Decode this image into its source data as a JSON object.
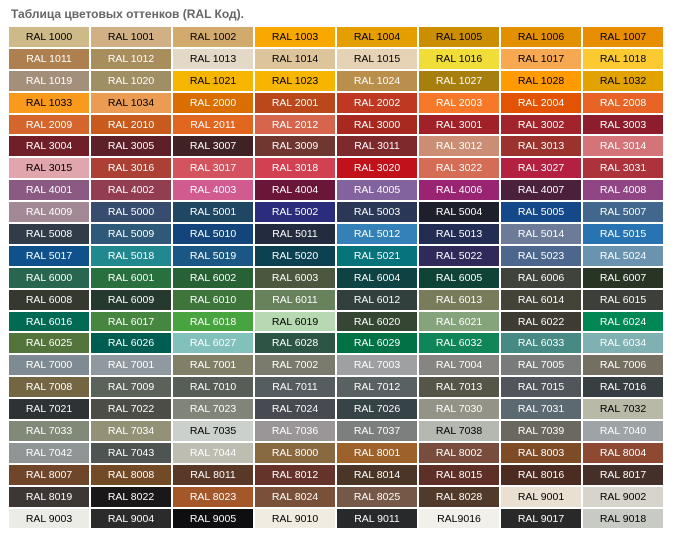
{
  "title": "Таблица цветовых оттенков (RAL Код).",
  "swatches": [
    {
      "code": "RAL 1000",
      "bg": "#CDBA88",
      "fg": "#000000"
    },
    {
      "code": "RAL 1001",
      "bg": "#D0B084",
      "fg": "#000000"
    },
    {
      "code": "RAL 1002",
      "bg": "#D2AA6D",
      "fg": "#000000"
    },
    {
      "code": "RAL 1003",
      "bg": "#F9A800",
      "fg": "#000000"
    },
    {
      "code": "RAL 1004",
      "bg": "#E49E00",
      "fg": "#000000"
    },
    {
      "code": "RAL 1005",
      "bg": "#CB8E00",
      "fg": "#000000"
    },
    {
      "code": "RAL 1006",
      "bg": "#E29000",
      "fg": "#000000"
    },
    {
      "code": "RAL 1007",
      "bg": "#E88C00",
      "fg": "#000000"
    },
    {
      "code": "RAL 1011",
      "bg": "#AF804F",
      "fg": "#ffffff"
    },
    {
      "code": "RAL 1012",
      "bg": "#A88E5C",
      "fg": "#ffffff"
    },
    {
      "code": "RAL 1013",
      "bg": "#E3D9C6",
      "fg": "#000000"
    },
    {
      "code": "RAL 1014",
      "bg": "#DDC49A",
      "fg": "#000000"
    },
    {
      "code": "RAL 1015",
      "bg": "#E6D2B5",
      "fg": "#000000"
    },
    {
      "code": "RAL 1016",
      "bg": "#F1DD38",
      "fg": "#000000"
    },
    {
      "code": "RAL 1017",
      "bg": "#F6A950",
      "fg": "#000000"
    },
    {
      "code": "RAL 1018",
      "bg": "#FACA30",
      "fg": "#000000"
    },
    {
      "code": "RAL 1019",
      "bg": "#A48F7A",
      "fg": "#ffffff"
    },
    {
      "code": "RAL 1020",
      "bg": "#A08F65",
      "fg": "#ffffff"
    },
    {
      "code": "RAL 1021",
      "bg": "#F6B600",
      "fg": "#000000"
    },
    {
      "code": "RAL 1023",
      "bg": "#F7B500",
      "fg": "#000000"
    },
    {
      "code": "RAL 1024",
      "bg": "#BA8F4C",
      "fg": "#ffffff"
    },
    {
      "code": "RAL 1027",
      "bg": "#A77F0E",
      "fg": "#ffffff"
    },
    {
      "code": "RAL 1028",
      "bg": "#FF9B00",
      "fg": "#000000"
    },
    {
      "code": "RAL 1032",
      "bg": "#E2A300",
      "fg": "#000000"
    },
    {
      "code": "RAL 1033",
      "bg": "#F99A1C",
      "fg": "#000000"
    },
    {
      "code": "RAL 1034",
      "bg": "#EB9C52",
      "fg": "#000000"
    },
    {
      "code": "RAL 2000",
      "bg": "#DA6E00",
      "fg": "#ffffff"
    },
    {
      "code": "RAL 2001",
      "bg": "#BA481B",
      "fg": "#ffffff"
    },
    {
      "code": "RAL 2002",
      "bg": "#BF3922",
      "fg": "#ffffff"
    },
    {
      "code": "RAL 2003",
      "bg": "#F67828",
      "fg": "#ffffff"
    },
    {
      "code": "RAL 2004",
      "bg": "#E25303",
      "fg": "#ffffff"
    },
    {
      "code": "RAL 2008",
      "bg": "#E86426",
      "fg": "#ffffff"
    },
    {
      "code": "RAL 2009",
      "bg": "#D4652C",
      "fg": "#ffffff"
    },
    {
      "code": "RAL 2010",
      "bg": "#C85A1E",
      "fg": "#ffffff"
    },
    {
      "code": "RAL 2011",
      "bg": "#E16620",
      "fg": "#ffffff"
    },
    {
      "code": "RAL 2012",
      "bg": "#D5654D",
      "fg": "#ffffff"
    },
    {
      "code": "RAL 3000",
      "bg": "#A72920",
      "fg": "#ffffff"
    },
    {
      "code": "RAL 3001",
      "bg": "#A02128",
      "fg": "#ffffff"
    },
    {
      "code": "RAL 3002",
      "bg": "#A1232B",
      "fg": "#ffffff"
    },
    {
      "code": "RAL 3003",
      "bg": "#8D1D2C",
      "fg": "#ffffff"
    },
    {
      "code": "RAL 3004",
      "bg": "#701F29",
      "fg": "#ffffff"
    },
    {
      "code": "RAL 3005",
      "bg": "#5E2028",
      "fg": "#ffffff"
    },
    {
      "code": "RAL 3007",
      "bg": "#402225",
      "fg": "#ffffff"
    },
    {
      "code": "RAL 3009",
      "bg": "#703731",
      "fg": "#ffffff"
    },
    {
      "code": "RAL 3011",
      "bg": "#7E292C",
      "fg": "#ffffff"
    },
    {
      "code": "RAL 3012",
      "bg": "#CB8D73",
      "fg": "#ffffff"
    },
    {
      "code": "RAL 3013",
      "bg": "#9C322E",
      "fg": "#ffffff"
    },
    {
      "code": "RAL 3014",
      "bg": "#D47479",
      "fg": "#ffffff"
    },
    {
      "code": "RAL 3015",
      "bg": "#E1A6AD",
      "fg": "#000000"
    },
    {
      "code": "RAL 3016",
      "bg": "#AC4034",
      "fg": "#ffffff"
    },
    {
      "code": "RAL 3017",
      "bg": "#D3545F",
      "fg": "#ffffff"
    },
    {
      "code": "RAL 3018",
      "bg": "#D14152",
      "fg": "#ffffff"
    },
    {
      "code": "RAL 3020",
      "bg": "#C1121C",
      "fg": "#ffffff"
    },
    {
      "code": "RAL 3022",
      "bg": "#D56D56",
      "fg": "#ffffff"
    },
    {
      "code": "RAL 3027",
      "bg": "#B42041",
      "fg": "#ffffff"
    },
    {
      "code": "RAL 3031",
      "bg": "#AC323B",
      "fg": "#ffffff"
    },
    {
      "code": "RAL 4001",
      "bg": "#8A5A83",
      "fg": "#ffffff"
    },
    {
      "code": "RAL 4002",
      "bg": "#933D50",
      "fg": "#ffffff"
    },
    {
      "code": "RAL 4003",
      "bg": "#D15B8F",
      "fg": "#ffffff"
    },
    {
      "code": "RAL 4004",
      "bg": "#691639",
      "fg": "#ffffff"
    },
    {
      "code": "RAL 4005",
      "bg": "#83639D",
      "fg": "#ffffff"
    },
    {
      "code": "RAL 4006",
      "bg": "#992572",
      "fg": "#ffffff"
    },
    {
      "code": "RAL 4007",
      "bg": "#4A203B",
      "fg": "#ffffff"
    },
    {
      "code": "RAL 4008",
      "bg": "#904684",
      "fg": "#ffffff"
    },
    {
      "code": "RAL 4009",
      "bg": "#A38995",
      "fg": "#ffffff"
    },
    {
      "code": "RAL 5000",
      "bg": "#384C70",
      "fg": "#ffffff"
    },
    {
      "code": "RAL 5001",
      "bg": "#1F4764",
      "fg": "#ffffff"
    },
    {
      "code": "RAL 5002",
      "bg": "#2B2C7C",
      "fg": "#ffffff"
    },
    {
      "code": "RAL 5003",
      "bg": "#2A3756",
      "fg": "#ffffff"
    },
    {
      "code": "RAL 5004",
      "bg": "#1D1F2A",
      "fg": "#ffffff"
    },
    {
      "code": "RAL 5005",
      "bg": "#154889",
      "fg": "#ffffff"
    },
    {
      "code": "RAL 5007",
      "bg": "#41678D",
      "fg": "#ffffff"
    },
    {
      "code": "RAL 5008",
      "bg": "#313C48",
      "fg": "#ffffff"
    },
    {
      "code": "RAL 5009",
      "bg": "#2E5978",
      "fg": "#ffffff"
    },
    {
      "code": "RAL 5010",
      "bg": "#13447C",
      "fg": "#ffffff"
    },
    {
      "code": "RAL 5011",
      "bg": "#232C3F",
      "fg": "#ffffff"
    },
    {
      "code": "RAL 5012",
      "bg": "#3481B8",
      "fg": "#ffffff"
    },
    {
      "code": "RAL 5013",
      "bg": "#232D53",
      "fg": "#ffffff"
    },
    {
      "code": "RAL 5014",
      "bg": "#6C7C98",
      "fg": "#ffffff"
    },
    {
      "code": "RAL 5015",
      "bg": "#2874B2",
      "fg": "#ffffff"
    },
    {
      "code": "RAL 5017",
      "bg": "#0E518D",
      "fg": "#ffffff"
    },
    {
      "code": "RAL 5018",
      "bg": "#21888F",
      "fg": "#ffffff"
    },
    {
      "code": "RAL 5019",
      "bg": "#1A5784",
      "fg": "#ffffff"
    },
    {
      "code": "RAL 5020",
      "bg": "#0B4151",
      "fg": "#ffffff"
    },
    {
      "code": "RAL 5021",
      "bg": "#07737A",
      "fg": "#ffffff"
    },
    {
      "code": "RAL 5022",
      "bg": "#2F2A5A",
      "fg": "#ffffff"
    },
    {
      "code": "RAL 5023",
      "bg": "#4D668E",
      "fg": "#ffffff"
    },
    {
      "code": "RAL 5024",
      "bg": "#6A93B0",
      "fg": "#ffffff"
    },
    {
      "code": "RAL 6000",
      "bg": "#296650",
      "fg": "#ffffff"
    },
    {
      "code": "RAL 6001",
      "bg": "#28713E",
      "fg": "#ffffff"
    },
    {
      "code": "RAL 6002",
      "bg": "#276235",
      "fg": "#ffffff"
    },
    {
      "code": "RAL 6003",
      "bg": "#4B573E",
      "fg": "#ffffff"
    },
    {
      "code": "RAL 6004",
      "bg": "#0E4243",
      "fg": "#ffffff"
    },
    {
      "code": "RAL 6005",
      "bg": "#0F4336",
      "fg": "#ffffff"
    },
    {
      "code": "RAL 6006",
      "bg": "#40433B",
      "fg": "#ffffff"
    },
    {
      "code": "RAL 6007",
      "bg": "#283424",
      "fg": "#ffffff"
    },
    {
      "code": "RAL 6008",
      "bg": "#35382E",
      "fg": "#ffffff"
    },
    {
      "code": "RAL 6009",
      "bg": "#26392F",
      "fg": "#ffffff"
    },
    {
      "code": "RAL 6010",
      "bg": "#3E753B",
      "fg": "#ffffff"
    },
    {
      "code": "RAL 6011",
      "bg": "#68825B",
      "fg": "#ffffff"
    },
    {
      "code": "RAL 6012",
      "bg": "#31403D",
      "fg": "#ffffff"
    },
    {
      "code": "RAL 6013",
      "bg": "#797C5A",
      "fg": "#ffffff"
    },
    {
      "code": "RAL 6014",
      "bg": "#444337",
      "fg": "#ffffff"
    },
    {
      "code": "RAL 6015",
      "bg": "#3D403A",
      "fg": "#ffffff"
    },
    {
      "code": "RAL 6016",
      "bg": "#026A52",
      "fg": "#ffffff"
    },
    {
      "code": "RAL 6017",
      "bg": "#468641",
      "fg": "#ffffff"
    },
    {
      "code": "RAL 6018",
      "bg": "#48A43F",
      "fg": "#ffffff"
    },
    {
      "code": "RAL 6019",
      "bg": "#B7D9B1",
      "fg": "#000000"
    },
    {
      "code": "RAL 6020",
      "bg": "#354733",
      "fg": "#ffffff"
    },
    {
      "code": "RAL 6021",
      "bg": "#86A47C",
      "fg": "#ffffff"
    },
    {
      "code": "RAL 6022",
      "bg": "#3E3C32",
      "fg": "#ffffff"
    },
    {
      "code": "RAL 6024",
      "bg": "#008754",
      "fg": "#ffffff"
    },
    {
      "code": "RAL 6025",
      "bg": "#53753C",
      "fg": "#ffffff"
    },
    {
      "code": "RAL 6026",
      "bg": "#005D52",
      "fg": "#ffffff"
    },
    {
      "code": "RAL 6027",
      "bg": "#81C0BB",
      "fg": "#ffffff"
    },
    {
      "code": "RAL 6028",
      "bg": "#2D5546",
      "fg": "#ffffff"
    },
    {
      "code": "RAL 6029",
      "bg": "#007243",
      "fg": "#ffffff"
    },
    {
      "code": "RAL 6032",
      "bg": "#0F8558",
      "fg": "#ffffff"
    },
    {
      "code": "RAL 6033",
      "bg": "#478A84",
      "fg": "#ffffff"
    },
    {
      "code": "RAL 6034",
      "bg": "#7FB0B2",
      "fg": "#ffffff"
    },
    {
      "code": "RAL 7000",
      "bg": "#7E8B92",
      "fg": "#ffffff"
    },
    {
      "code": "RAL 7001",
      "bg": "#8F999F",
      "fg": "#ffffff"
    },
    {
      "code": "RAL 7001",
      "bg": "#817F68",
      "fg": "#ffffff"
    },
    {
      "code": "RAL 7002",
      "bg": "#7A7B6D",
      "fg": "#ffffff"
    },
    {
      "code": "RAL 7003",
      "bg": "#9EA0A1",
      "fg": "#ffffff"
    },
    {
      "code": "RAL 7004",
      "bg": "#878581",
      "fg": "#ffffff"
    },
    {
      "code": "RAL 7005",
      "bg": "#787B7A",
      "fg": "#ffffff"
    },
    {
      "code": "RAL 7006",
      "bg": "#756F61",
      "fg": "#ffffff"
    },
    {
      "code": "RAL 7008",
      "bg": "#746643",
      "fg": "#ffffff"
    },
    {
      "code": "RAL 7009",
      "bg": "#5B6259",
      "fg": "#ffffff"
    },
    {
      "code": "RAL 7010",
      "bg": "#575D57",
      "fg": "#ffffff"
    },
    {
      "code": "RAL 7011",
      "bg": "#555D61",
      "fg": "#ffffff"
    },
    {
      "code": "RAL 7012",
      "bg": "#596163",
      "fg": "#ffffff"
    },
    {
      "code": "RAL 7013",
      "bg": "#555548",
      "fg": "#ffffff"
    },
    {
      "code": "RAL 7015",
      "bg": "#51565C",
      "fg": "#ffffff"
    },
    {
      "code": "RAL 7016",
      "bg": "#373F43",
      "fg": "#ffffff"
    },
    {
      "code": "RAL 7021",
      "bg": "#2E3234",
      "fg": "#ffffff"
    },
    {
      "code": "RAL 7022",
      "bg": "#4B4D46",
      "fg": "#ffffff"
    },
    {
      "code": "RAL 7023",
      "bg": "#818479",
      "fg": "#ffffff"
    },
    {
      "code": "RAL 7024",
      "bg": "#474A50",
      "fg": "#ffffff"
    },
    {
      "code": "RAL 7026",
      "bg": "#374447",
      "fg": "#ffffff"
    },
    {
      "code": "RAL 7030",
      "bg": "#939388",
      "fg": "#ffffff"
    },
    {
      "code": "RAL 7031",
      "bg": "#5D6970",
      "fg": "#ffffff"
    },
    {
      "code": "RAL 7032",
      "bg": "#B9B9A8",
      "fg": "#000000"
    },
    {
      "code": "RAL 7033",
      "bg": "#818979",
      "fg": "#ffffff"
    },
    {
      "code": "RAL 7034",
      "bg": "#939176",
      "fg": "#ffffff"
    },
    {
      "code": "RAL 7035",
      "bg": "#CBD0CC",
      "fg": "#000000"
    },
    {
      "code": "RAL 7036",
      "bg": "#9A9697",
      "fg": "#ffffff"
    },
    {
      "code": "RAL 7037",
      "bg": "#7C7F7E",
      "fg": "#ffffff"
    },
    {
      "code": "RAL 7038",
      "bg": "#B4B8B0",
      "fg": "#000000"
    },
    {
      "code": "RAL 7039",
      "bg": "#6B695F",
      "fg": "#ffffff"
    },
    {
      "code": "RAL 7040",
      "bg": "#9DA3A6",
      "fg": "#ffffff"
    },
    {
      "code": "RAL 7042",
      "bg": "#8F9695",
      "fg": "#ffffff"
    },
    {
      "code": "RAL 7043",
      "bg": "#4E5451",
      "fg": "#ffffff"
    },
    {
      "code": "RAL 7044",
      "bg": "#BDBDB2",
      "fg": "#ffffff"
    },
    {
      "code": "RAL 8000",
      "bg": "#89693F",
      "fg": "#ffffff"
    },
    {
      "code": "RAL 8001",
      "bg": "#9D622B",
      "fg": "#ffffff"
    },
    {
      "code": "RAL 8002",
      "bg": "#794D3E",
      "fg": "#ffffff"
    },
    {
      "code": "RAL 8003",
      "bg": "#7E4B27",
      "fg": "#ffffff"
    },
    {
      "code": "RAL 8004",
      "bg": "#8D4931",
      "fg": "#ffffff"
    },
    {
      "code": "RAL 8007",
      "bg": "#70462B",
      "fg": "#ffffff"
    },
    {
      "code": "RAL 8008",
      "bg": "#724A25",
      "fg": "#ffffff"
    },
    {
      "code": "RAL 8011",
      "bg": "#5A3827",
      "fg": "#ffffff"
    },
    {
      "code": "RAL 8012",
      "bg": "#66332B",
      "fg": "#ffffff"
    },
    {
      "code": "RAL 8014",
      "bg": "#4A3526",
      "fg": "#ffffff"
    },
    {
      "code": "RAL 8015",
      "bg": "#5E2F26",
      "fg": "#ffffff"
    },
    {
      "code": "RAL 8016",
      "bg": "#4C2B20",
      "fg": "#ffffff"
    },
    {
      "code": "RAL 8017",
      "bg": "#442F29",
      "fg": "#ffffff"
    },
    {
      "code": "RAL 8019",
      "bg": "#3D3635",
      "fg": "#ffffff"
    },
    {
      "code": "RAL 8022",
      "bg": "#1A1718",
      "fg": "#ffffff"
    },
    {
      "code": "RAL 8023",
      "bg": "#A45729",
      "fg": "#ffffff"
    },
    {
      "code": "RAL 8024",
      "bg": "#795038",
      "fg": "#ffffff"
    },
    {
      "code": "RAL 8025",
      "bg": "#755847",
      "fg": "#ffffff"
    },
    {
      "code": "RAL 8028",
      "bg": "#513A2A",
      "fg": "#ffffff"
    },
    {
      "code": "RAL 9001",
      "bg": "#E9E0D2",
      "fg": "#000000"
    },
    {
      "code": "RAL 9002",
      "bg": "#D7D5CB",
      "fg": "#000000"
    },
    {
      "code": "RAL 9003",
      "bg": "#ECECE7",
      "fg": "#000000"
    },
    {
      "code": "RAL 9004",
      "bg": "#2B2B2C",
      "fg": "#ffffff"
    },
    {
      "code": "RAL 9005",
      "bg": "#0E0E10",
      "fg": "#ffffff"
    },
    {
      "code": "RAL 9010",
      "bg": "#F1ECE1",
      "fg": "#000000"
    },
    {
      "code": "RAL 9011",
      "bg": "#27292B",
      "fg": "#ffffff"
    },
    {
      "code": "RAL9016",
      "bg": "#F1F0EA",
      "fg": "#000000"
    },
    {
      "code": "RAL 9017",
      "bg": "#2A292A",
      "fg": "#ffffff"
    },
    {
      "code": "RAL 9018",
      "bg": "#C8CBC4",
      "fg": "#000000"
    }
  ]
}
